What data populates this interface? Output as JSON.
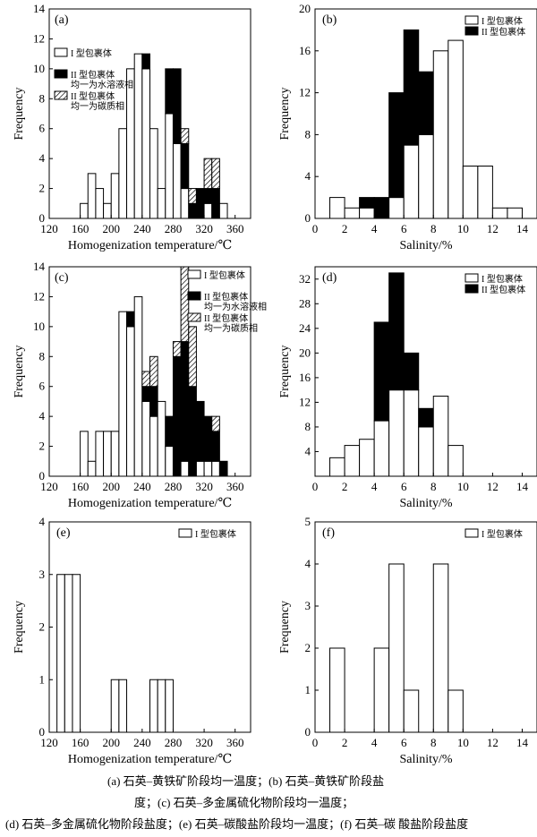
{
  "colors": {
    "type1": "#ffffff",
    "type2_aqueous": "#000000",
    "type2_carbonic": "hatch"
  },
  "chart_data": [
    {
      "panel": "(a)",
      "type": "bar",
      "stacked": true,
      "xlabel": "Homogenization temperature/℃",
      "ylabel": "Frequency",
      "xlim": [
        120,
        380
      ],
      "ylim": [
        0,
        14
      ],
      "xticks": [
        120,
        160,
        200,
        240,
        280,
        320,
        360
      ],
      "yticks": [
        0,
        2,
        4,
        6,
        8,
        10,
        12,
        14
      ],
      "bin_width": 10,
      "legend": "top-left",
      "bins": [
        150,
        160,
        170,
        180,
        190,
        200,
        210,
        220,
        230,
        240,
        250,
        260,
        270,
        280,
        290,
        300,
        310,
        320,
        330,
        340,
        350
      ],
      "series": [
        {
          "name": "I 型包裹体",
          "values": [
            0,
            1,
            3,
            2,
            1,
            3,
            6,
            10,
            11,
            10,
            6,
            2,
            7,
            5,
            2,
            0,
            0,
            1,
            0,
            1,
            0
          ]
        },
        {
          "name": "II 型包裹体均一为水溶液相",
          "values": [
            0,
            0,
            0,
            0,
            0,
            0,
            0,
            0,
            0,
            1,
            0,
            0,
            3,
            5,
            3,
            1,
            2,
            1,
            2,
            0,
            0
          ]
        },
        {
          "name": "II 型包裹体均一为碳质相",
          "values": [
            0,
            0,
            0,
            0,
            0,
            0,
            0,
            0,
            0,
            0,
            0,
            0,
            0,
            0,
            1,
            1,
            0,
            2,
            2,
            0,
            0
          ]
        }
      ]
    },
    {
      "panel": "(b)",
      "type": "bar",
      "stacked": true,
      "xlabel": "Salinity/%",
      "ylabel": "Frequency",
      "xlim": [
        0,
        15
      ],
      "ylim": [
        0,
        20
      ],
      "xticks": [
        0,
        2,
        4,
        6,
        8,
        10,
        12,
        14
      ],
      "yticks": [
        0,
        4,
        8,
        12,
        16,
        20
      ],
      "bin_width": 1,
      "legend": "top-right",
      "bins": [
        1,
        2,
        3,
        4,
        5,
        6,
        7,
        8,
        9,
        10,
        11,
        12,
        13
      ],
      "series": [
        {
          "name": "I 型包裹体",
          "values": [
            2,
            1,
            1,
            0,
            2,
            7,
            8,
            16,
            17,
            5,
            5,
            1,
            1
          ]
        },
        {
          "name": "II 型包裹体",
          "values": [
            0,
            0,
            1,
            2,
            10,
            11,
            6,
            0,
            0,
            0,
            0,
            0,
            0
          ]
        }
      ]
    },
    {
      "panel": "(c)",
      "type": "bar",
      "stacked": true,
      "xlabel": "Homogenization temperature/℃",
      "ylabel": "Frequency",
      "xlim": [
        120,
        380
      ],
      "ylim": [
        0,
        14
      ],
      "xticks": [
        120,
        160,
        200,
        240,
        280,
        320,
        360
      ],
      "yticks": [
        0,
        2,
        4,
        6,
        8,
        10,
        12,
        14
      ],
      "bin_width": 10,
      "legend": "top-right",
      "bins": [
        150,
        160,
        170,
        180,
        190,
        200,
        210,
        220,
        230,
        240,
        250,
        260,
        270,
        280,
        290,
        300,
        310,
        320,
        330,
        340,
        350
      ],
      "series": [
        {
          "name": "I 型包裹体",
          "values": [
            0,
            3,
            1,
            3,
            3,
            3,
            11,
            10,
            12,
            5,
            4,
            5,
            2,
            0,
            1,
            0,
            1,
            1,
            1,
            0,
            0
          ]
        },
        {
          "name": "II 型包裹体均一为水溶液相",
          "values": [
            0,
            0,
            0,
            0,
            0,
            0,
            0,
            1,
            0,
            1,
            2,
            0,
            2,
            8,
            8,
            6,
            4,
            3,
            2,
            1,
            0
          ]
        },
        {
          "name": "II 型包裹体均一为碳质相",
          "values": [
            0,
            0,
            0,
            0,
            0,
            0,
            0,
            0,
            0,
            1,
            2,
            0,
            0,
            1,
            5,
            4,
            0,
            0,
            1,
            0,
            0
          ]
        }
      ]
    },
    {
      "panel": "(d)",
      "type": "bar",
      "stacked": true,
      "xlabel": "Salinity/%",
      "ylabel": "Frequency",
      "xlim": [
        0,
        15
      ],
      "ylim": [
        0,
        34
      ],
      "xticks": [
        0,
        2,
        4,
        6,
        8,
        10,
        12,
        14
      ],
      "yticks": [
        4,
        8,
        12,
        16,
        20,
        24,
        28,
        32
      ],
      "bin_width": 1,
      "legend": "top-right",
      "bins": [
        1,
        2,
        3,
        4,
        5,
        6,
        7,
        8,
        9
      ],
      "series": [
        {
          "name": "I 型包裹体",
          "values": [
            3,
            5,
            6,
            9,
            14,
            14,
            8,
            13,
            5
          ]
        },
        {
          "name": "II 型包裹体",
          "values": [
            0,
            0,
            0,
            16,
            19,
            6,
            3,
            0,
            0
          ]
        }
      ]
    },
    {
      "panel": "(e)",
      "type": "bar",
      "xlabel": "Homogenization temperature/℃",
      "ylabel": "Frequency",
      "xlim": [
        120,
        380
      ],
      "ylim": [
        0,
        4
      ],
      "xticks": [
        120,
        160,
        200,
        240,
        280,
        320,
        360
      ],
      "yticks": [
        0,
        1,
        2,
        3,
        4
      ],
      "bin_width": 10,
      "legend": "top-right",
      "bins": [
        130,
        140,
        150,
        200,
        210,
        250,
        260,
        270
      ],
      "series": [
        {
          "name": "I 型包裹体",
          "values": [
            3,
            3,
            3,
            1,
            1,
            1,
            1,
            1
          ]
        }
      ]
    },
    {
      "panel": "(f)",
      "type": "bar",
      "xlabel": "Salinity/%",
      "ylabel": "Frequency",
      "xlim": [
        0,
        15
      ],
      "ylim": [
        0,
        5
      ],
      "xticks": [
        0,
        2,
        4,
        6,
        8,
        10,
        12,
        14
      ],
      "yticks": [
        0,
        1,
        2,
        3,
        4,
        5
      ],
      "bin_width": 1,
      "legend": "top-right",
      "bins": [
        1,
        4,
        5,
        6,
        8,
        9
      ],
      "series": [
        {
          "name": "I 型包裹体",
          "values": [
            2,
            2,
            4,
            1,
            4,
            1
          ]
        }
      ]
    }
  ],
  "caption": {
    "line1": "(a) 石英–黄铁矿阶段均一温度；(b) 石英–黄铁矿阶段盐",
    "line2": "度；(c) 石英–多金属硫化物阶段均一温度；",
    "line3": "(d) 石英–多金属硫化物阶段盐度；(e) 石英–碳酸盐阶段均一温度；(f) 石英–碳 酸盐阶段盐度"
  }
}
